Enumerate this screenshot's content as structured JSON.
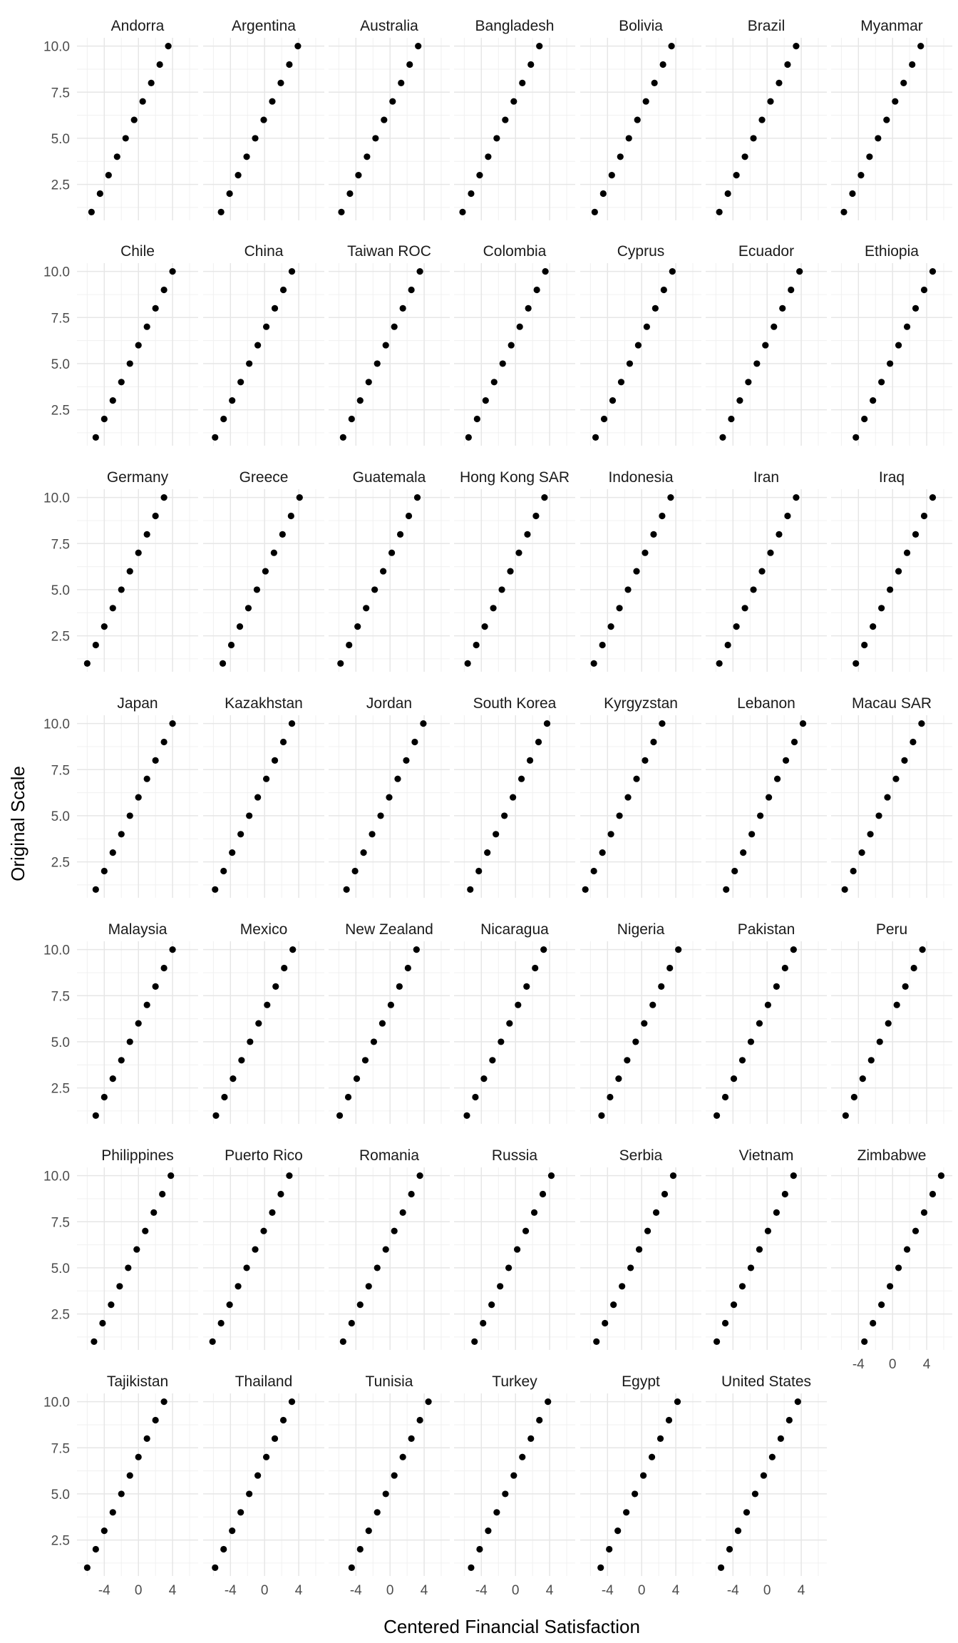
{
  "chart_data": {
    "type": "scatter",
    "facet_layout": {
      "rows": 7,
      "cols": 7
    },
    "xlabel": "Centered Financial Satisfaction",
    "ylabel": "Original Scale",
    "xlim": [
      -7.2,
      7.0
    ],
    "ylim": [
      0.55,
      10.45
    ],
    "x_ticks": [
      -4,
      0,
      4
    ],
    "x_tick_labels": [
      "-4",
      "0",
      "4"
    ],
    "y_ticks": [
      2.5,
      5.0,
      7.5,
      10.0
    ],
    "y_tick_labels": [
      "2.5",
      "5.0",
      "7.5",
      "10.0"
    ],
    "grid": true,
    "point_color": "#000000",
    "y_values": [
      1,
      2,
      3,
      4,
      5,
      6,
      7,
      8,
      9,
      10
    ],
    "panels": [
      {
        "name": "Andorra",
        "x_offset": -5.5
      },
      {
        "name": "Argentina",
        "x_offset": -5.1
      },
      {
        "name": "Australia",
        "x_offset": -5.7
      },
      {
        "name": "Bangladesh",
        "x_offset": -6.2
      },
      {
        "name": "Bolivia",
        "x_offset": -5.5
      },
      {
        "name": "Brazil",
        "x_offset": -5.6
      },
      {
        "name": "Myanmar",
        "x_offset": -5.7
      },
      {
        "name": "Chile",
        "x_offset": -5.0
      },
      {
        "name": "China",
        "x_offset": -5.8
      },
      {
        "name": "Taiwan ROC",
        "x_offset": -5.5
      },
      {
        "name": "Colombia",
        "x_offset": -5.5
      },
      {
        "name": "Cyprus",
        "x_offset": -5.4
      },
      {
        "name": "Ecuador",
        "x_offset": -5.2
      },
      {
        "name": "Ethiopia",
        "x_offset": -4.3
      },
      {
        "name": "Germany",
        "x_offset": -6.0
      },
      {
        "name": "Greece",
        "x_offset": -4.9
      },
      {
        "name": "Guatemala",
        "x_offset": -5.8
      },
      {
        "name": "Hong Kong SAR",
        "x_offset": -5.6
      },
      {
        "name": "Indonesia",
        "x_offset": -5.6
      },
      {
        "name": "Iran",
        "x_offset": -5.6
      },
      {
        "name": "Iraq",
        "x_offset": -4.3
      },
      {
        "name": "Japan",
        "x_offset": -5.0
      },
      {
        "name": "Kazakhstan",
        "x_offset": -5.8
      },
      {
        "name": "Jordan",
        "x_offset": -5.1
      },
      {
        "name": "South Korea",
        "x_offset": -5.3
      },
      {
        "name": "Kyrgyzstan",
        "x_offset": -6.6
      },
      {
        "name": "Lebanon",
        "x_offset": -4.8
      },
      {
        "name": "Macau SAR",
        "x_offset": -5.6
      },
      {
        "name": "Malaysia",
        "x_offset": -5.0
      },
      {
        "name": "Mexico",
        "x_offset": -5.7
      },
      {
        "name": "New Zealand",
        "x_offset": -5.9
      },
      {
        "name": "Nicaragua",
        "x_offset": -5.7
      },
      {
        "name": "Nigeria",
        "x_offset": -4.7
      },
      {
        "name": "Pakistan",
        "x_offset": -5.9
      },
      {
        "name": "Peru",
        "x_offset": -5.5
      },
      {
        "name": "Philippines",
        "x_offset": -5.2
      },
      {
        "name": "Puerto Rico",
        "x_offset": -6.1
      },
      {
        "name": "Romania",
        "x_offset": -5.5
      },
      {
        "name": "Russia",
        "x_offset": -4.8
      },
      {
        "name": "Serbia",
        "x_offset": -5.3
      },
      {
        "name": "Vietnam",
        "x_offset": -5.9
      },
      {
        "name": "Zimbabwe",
        "x_offset": -3.3
      },
      {
        "name": "Tajikistan",
        "x_offset": -6.0
      },
      {
        "name": "Thailand",
        "x_offset": -5.8
      },
      {
        "name": "Tunisia",
        "x_offset": -4.5
      },
      {
        "name": "Turkey",
        "x_offset": -5.2
      },
      {
        "name": "Egypt",
        "x_offset": -4.8
      },
      {
        "name": "United States",
        "x_offset": -5.4
      }
    ]
  }
}
